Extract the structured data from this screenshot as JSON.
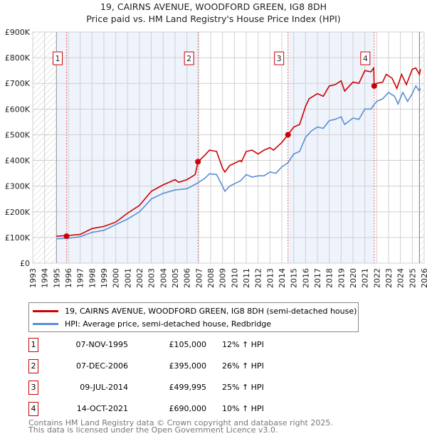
{
  "chart_data": {
    "type": "line",
    "title": "19, CAIRNS AVENUE, WOODFORD GREEN, IG8 8DH",
    "subtitle": "Price paid vs. HM Land Registry's House Price Index (HPI)",
    "xlim": [
      1993,
      2026
    ],
    "ylim": [
      0,
      900000
    ],
    "y_ticks": [
      {
        "v": 0,
        "label": "£0"
      },
      {
        "v": 100000,
        "label": "£100K"
      },
      {
        "v": 200000,
        "label": "£200K"
      },
      {
        "v": 300000,
        "label": "£300K"
      },
      {
        "v": 400000,
        "label": "£400K"
      },
      {
        "v": 500000,
        "label": "£500K"
      },
      {
        "v": 600000,
        "label": "£600K"
      },
      {
        "v": 700000,
        "label": "£700K"
      },
      {
        "v": 800000,
        "label": "£800K"
      },
      {
        "v": 900000,
        "label": "£900K"
      }
    ],
    "x_ticks": [
      "1993",
      "1994",
      "1995",
      "1996",
      "1997",
      "1998",
      "1999",
      "2000",
      "2001",
      "2002",
      "2003",
      "2004",
      "2005",
      "2006",
      "2007",
      "2008",
      "2009",
      "2010",
      "2011",
      "2012",
      "2013",
      "2014",
      "2015",
      "2016",
      "2017",
      "2018",
      "2019",
      "2020",
      "2021",
      "2022",
      "2023",
      "2024",
      "2025",
      "2026"
    ],
    "hatch_before": 1995,
    "hatch_after": 2025.6,
    "shaded_bands": [
      [
        1995,
        2006.93
      ],
      [
        2014.52,
        2021.79
      ]
    ],
    "series": [
      {
        "name": "19, CAIRNS AVENUE, WOODFORD GREEN, IG8 8DH (semi-detached house)",
        "color": "#cc0000",
        "x": [
          1995,
          1996,
          1997,
          1998,
          1999,
          2000,
          2001,
          2002,
          2003,
          2004,
          2005,
          2005.3,
          2006,
          2006.7,
          2006.93,
          2007.5,
          2007.9,
          2008.5,
          2009,
          2009.2,
          2009.6,
          2010.5,
          2010.6,
          2011,
          2011.5,
          2012,
          2012.5,
          2013,
          2013.3,
          2014,
          2014.52,
          2015,
          2015.5,
          2016,
          2016.3,
          2017,
          2017.5,
          2018,
          2018.5,
          2019,
          2019.3,
          2020,
          2020.5,
          2021,
          2021.5,
          2021.75,
          2021.79,
          2022,
          2022.5,
          2022.8,
          2023.3,
          2023.7,
          2024.1,
          2024.5,
          2025,
          2025.3,
          2025.6,
          2025.7
        ],
        "y": [
          105,
          108,
          112,
          135,
          143,
          160,
          195,
          225,
          280,
          305,
          325,
          315,
          325,
          345,
          395,
          420,
          440,
          435,
          370,
          355,
          380,
          400,
          395,
          435,
          440,
          425,
          440,
          450,
          440,
          470,
          500,
          530,
          540,
          610,
          640,
          660,
          650,
          690,
          695,
          710,
          670,
          705,
          700,
          750,
          745,
          760,
          690,
          700,
          705,
          735,
          720,
          680,
          735,
          695,
          755,
          760,
          735,
          755
        ]
      },
      {
        "name": "HPI: Average price, semi-detached house, Redbridge",
        "color": "#5b8fd4",
        "x": [
          1995,
          1996,
          1997,
          1998,
          1999,
          2000,
          2001,
          2002,
          2003,
          2004,
          2005,
          2006,
          2006.9,
          2007.5,
          2007.9,
          2008.5,
          2009,
          2009.2,
          2009.6,
          2010.5,
          2011,
          2011.5,
          2012,
          2012.5,
          2013,
          2013.5,
          2014,
          2014.5,
          2015,
          2015.5,
          2016,
          2016.5,
          2017,
          2017.5,
          2018,
          2018.5,
          2019,
          2019.3,
          2020,
          2020.5,
          2021,
          2021.5,
          2022,
          2022.5,
          2023,
          2023.5,
          2023.8,
          2024.2,
          2024.6,
          2025,
          2025.3,
          2025.6,
          2025.7
        ],
        "y": [
          95,
          97,
          103,
          120,
          128,
          150,
          172,
          200,
          250,
          272,
          285,
          290,
          312,
          330,
          348,
          345,
          300,
          280,
          300,
          320,
          345,
          335,
          340,
          340,
          355,
          350,
          375,
          390,
          425,
          435,
          490,
          515,
          530,
          525,
          555,
          560,
          570,
          540,
          565,
          560,
          600,
          600,
          630,
          640,
          665,
          650,
          620,
          665,
          630,
          660,
          690,
          670,
          680
        ]
      }
    ],
    "y_unit": "thousand GBP",
    "sales": [
      {
        "label": "1",
        "x": 1995.85,
        "y": 105,
        "date": "07-NOV-1995",
        "price": "£105,000",
        "hpi": "12% ↑ HPI"
      },
      {
        "label": "2",
        "x": 2006.93,
        "y": 395,
        "date": "07-DEC-2006",
        "price": "£395,000",
        "hpi": "26% ↑ HPI"
      },
      {
        "label": "3",
        "x": 2014.52,
        "y": 500,
        "date": "09-JUL-2014",
        "price": "£499,995",
        "hpi": "25% ↑ HPI"
      },
      {
        "label": "4",
        "x": 2021.79,
        "y": 690,
        "date": "14-OCT-2021",
        "price": "£690,000",
        "hpi": "10% ↑ HPI"
      }
    ]
  },
  "footer": {
    "line1": "Contains HM Land Registry data © Crown copyright and database right 2025.",
    "line2": "This data is licensed under the Open Government Licence v3.0."
  }
}
